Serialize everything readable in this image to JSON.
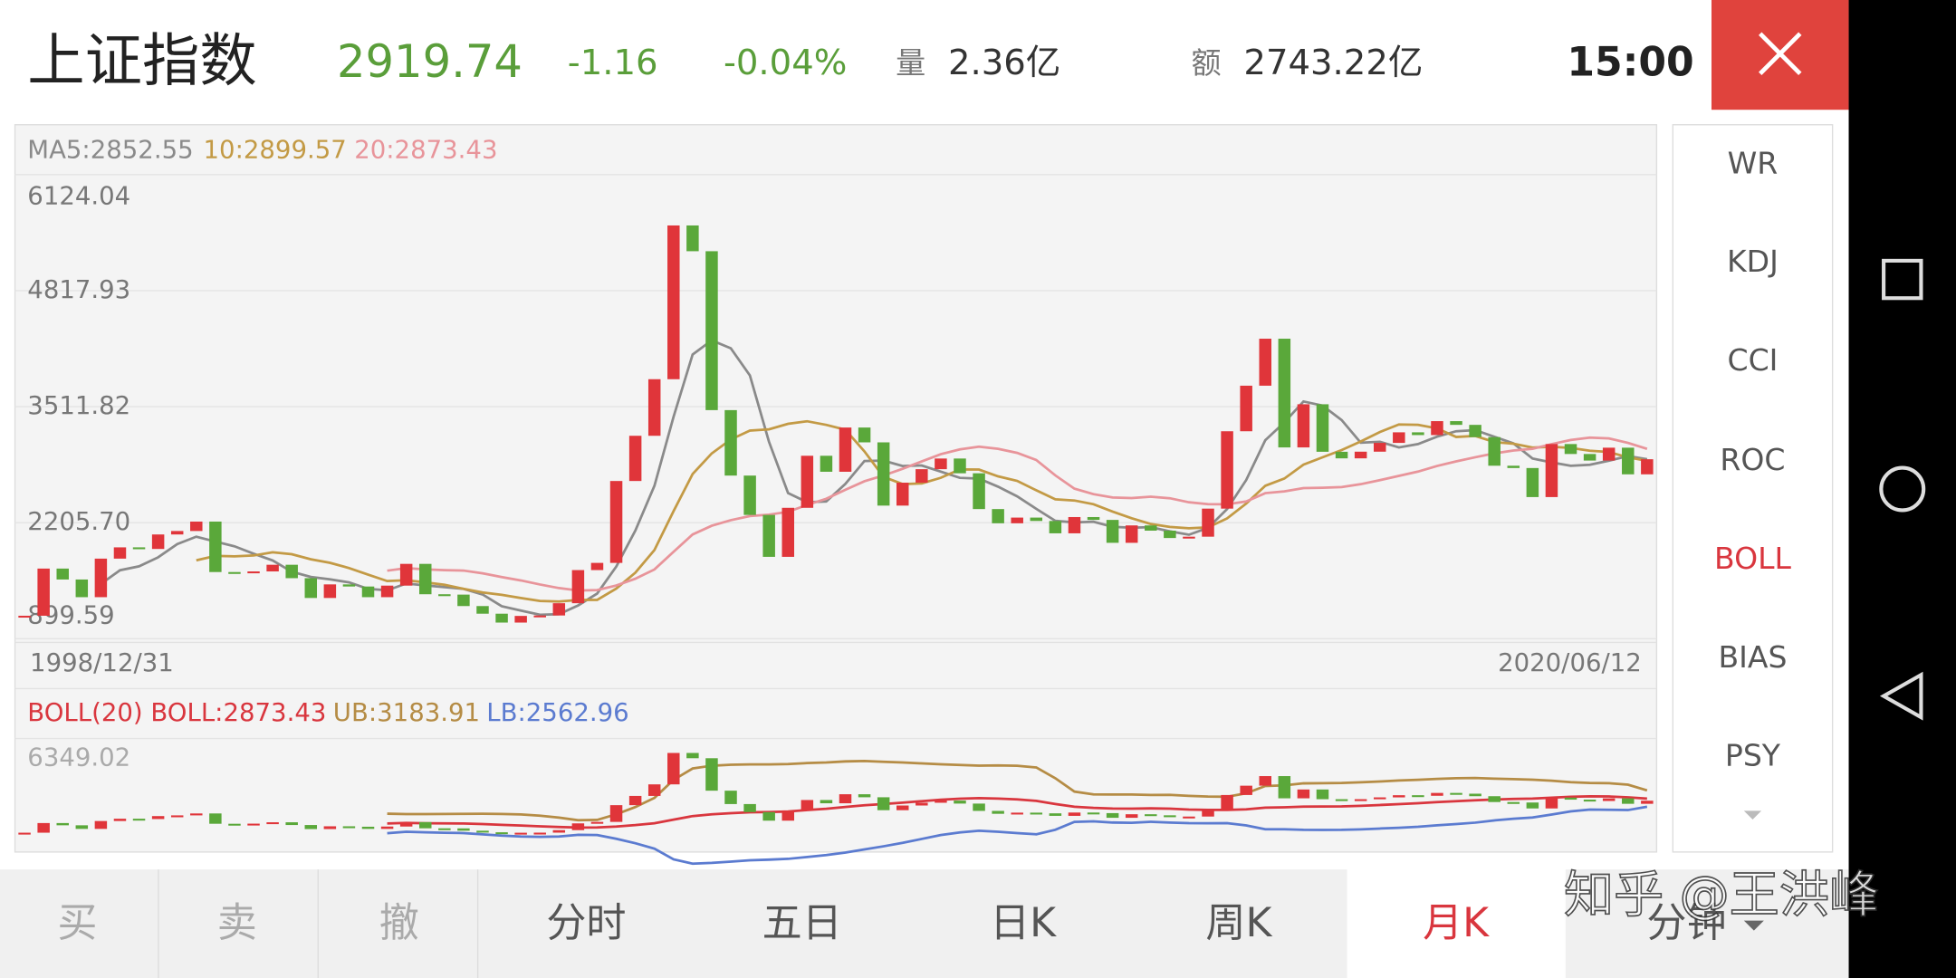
{
  "header": {
    "name": "上证指数",
    "price": "2919.74",
    "change": "-1.16",
    "change_pct": "-0.04%",
    "volume_label": "量",
    "volume": "2.36亿",
    "amount_label": "额",
    "amount": "2743.22亿",
    "time": "15:00"
  },
  "chart_data": [
    {
      "type": "candlestick",
      "legend": [
        "MA5:2852.55",
        "10:2899.57",
        "20:2873.43"
      ],
      "legend_colors": [
        "#8a8a8a",
        "#c39a45",
        "#e8949a"
      ],
      "ma_periods": [
        5,
        10,
        20
      ],
      "date_labels": [
        "1998/12/31",
        "2020/06/12"
      ],
      "values": [
        1158,
        1689,
        1566,
        1367,
        1801,
        1928,
        1910,
        2073,
        2112,
        2218,
        1650,
        1646,
        1657,
        1732,
        1581,
        1358,
        1511,
        1487,
        1367,
        1497,
        1742,
        1400,
        1396,
        1267,
        1181,
        1081,
        1156,
        1161,
        1299,
        1672,
        1753,
        2675,
        3184,
        3821,
        5552,
        5262,
        3473,
        2736,
        2293,
        1821,
        2373,
        2959,
        2779,
        3277,
        3110,
        2398,
        2656,
        2808,
        2928,
        2762,
        2359,
        2199,
        2263,
        2225,
        2086,
        2269,
        2237,
        1979,
        2175,
        2116,
        2033,
        2048,
        2364,
        3235,
        3748,
        4277,
        3053,
        3539,
        3004,
        2930,
        3005,
        3104,
        3223,
        3192,
        3349,
        3307,
        3169,
        2847,
        2821,
        2494,
        3091,
        2979,
        2905,
        3050,
        2750,
        2920
      ],
      "up_color": "#e0353a",
      "down_color": "#5aa83a",
      "ylim": [
        899.59,
        6124.04
      ],
      "yticks": [
        899.59,
        {
          "value": 2205.7,
          "label": "2205.70"
        },
        3511.82,
        4817.93,
        6124.04
      ],
      "grid": true
    },
    {
      "type": "boll",
      "legend": [
        "BOLL(20) BOLL:2873.43",
        "UB:3183.91",
        "LB:2562.96"
      ],
      "legend_colors": [
        "#d9363e",
        "#b58c45",
        "#5b7bd0"
      ],
      "period": 20,
      "ylim": [
        300,
        6349.02
      ],
      "yticks": [
        6349.02
      ]
    }
  ],
  "indicators": [
    "WR",
    "KDJ",
    "CCI",
    "ROC",
    "BOLL",
    "BIAS",
    "PSY"
  ],
  "active_indicator": 4,
  "tabs": [
    "买",
    "卖",
    "撤",
    "分时",
    "五日",
    "日K",
    "周K",
    "月K",
    "分钟"
  ],
  "active_tab": 7,
  "watermark": "知乎 @王洪峰"
}
